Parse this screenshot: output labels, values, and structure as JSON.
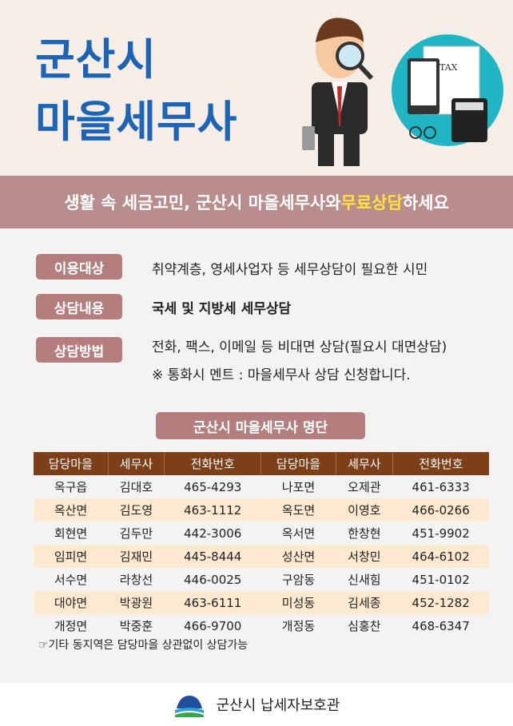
{
  "header": {
    "title_line1": "군산시",
    "title_line2": "마을세무사",
    "tax_doc_label": "TAX"
  },
  "band": {
    "text_before": "생활 속 세금고민, 군산시 마을세무사와 ",
    "highlight": "무료상담",
    "text_after": "하세요",
    "highlight_color": "#ffe23a"
  },
  "info": [
    {
      "label": "이용대상",
      "lines": [
        "취약계층, 영세사업자 등 세무상담이 필요한 시민"
      ]
    },
    {
      "label": "상담내용",
      "lines": [
        "국세 및 지방세 세무상담"
      ]
    },
    {
      "label": "상담방법",
      "lines": [
        "전화, 팩스, 이메일 등 비대면 상담(필요시 대면상담)",
        "※ 통화시 멘트 : 마을세무사 상담 신청합니다."
      ]
    }
  ],
  "list_title": "군산시 마을세무사 명단",
  "table": {
    "headers": [
      "담당마을",
      "세무사",
      "전화번호",
      "담당마을",
      "세무사",
      "전화번호"
    ],
    "rows": [
      [
        "옥구읍",
        "김대호",
        "465-4293",
        "나포면",
        "오제관",
        "461-6333"
      ],
      [
        "옥산면",
        "김도영",
        "463-1112",
        "옥도면",
        "이영호",
        "466-0266"
      ],
      [
        "회현면",
        "김두만",
        "442-3006",
        "옥서면",
        "한창현",
        "451-9902"
      ],
      [
        "임피면",
        "김재민",
        "445-8444",
        "성산면",
        "서창민",
        "464-6102"
      ],
      [
        "서수면",
        "라창선",
        "446-0025",
        "구암동",
        "신새힘",
        "451-0102"
      ],
      [
        "대야면",
        "박광원",
        "463-6111",
        "미성동",
        "김세종",
        "452-1282"
      ],
      [
        "개정면",
        "박중훈",
        "466-9700",
        "개정동",
        "심홍찬",
        "468-6347"
      ]
    ]
  },
  "note": "☞기타 동지역은 담당마을 상관없이 상담가능",
  "footer": {
    "org": "군산시 납세자보호관"
  },
  "colors": {
    "title": "#1c64b8",
    "band": "#b98d8d",
    "label": "#b47e7e",
    "table_header": "#7c3f17",
    "row_alt": "#fde9cf"
  }
}
